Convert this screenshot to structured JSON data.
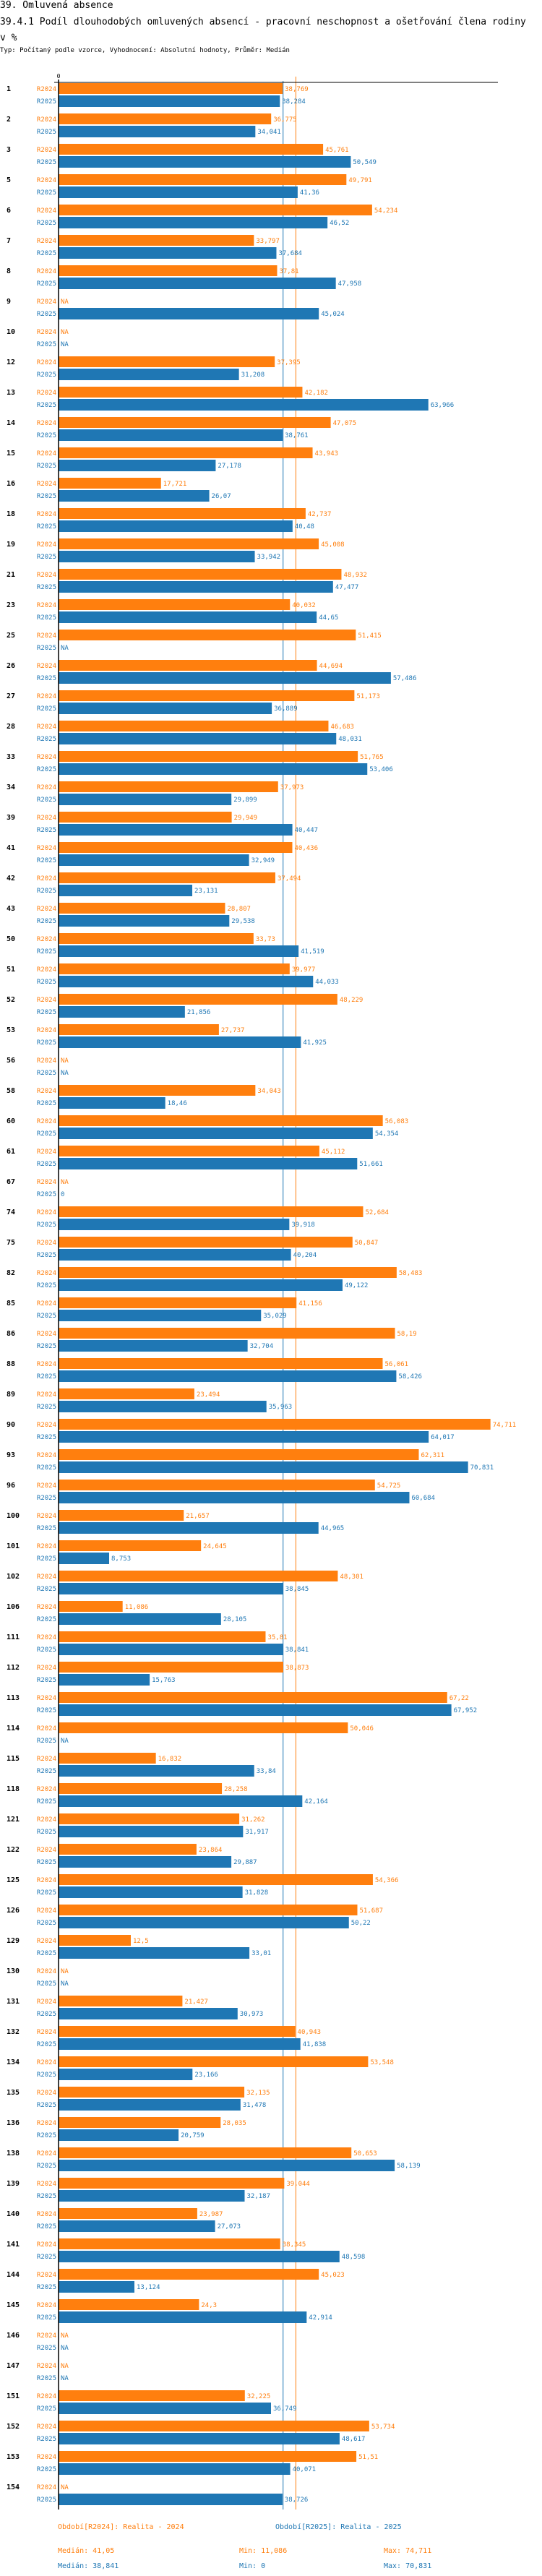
{
  "header": {
    "section_title": "39. Omluvená absence",
    "chart_title": "39.4.1 Podíl dlouhodobých omluvených absencí - pracovní neschopnost a ošetřování člena rodiny v %",
    "subtitle": "Typ: Počítaný podle vzorce, Vyhodnocení: Absolutní hodnoty, Průměr: Medián"
  },
  "colors": {
    "R2024": "#ff7f0e",
    "R2025": "#1f77b4",
    "axis": "#000000"
  },
  "legend": {
    "R2024": {
      "label": "Období[R2024]: Realita - 2024",
      "median": "Medián: 41,05",
      "min": "Min: 11,086",
      "max": "Max: 74,711"
    },
    "R2025": {
      "label": "Období[R2025]: Realita - 2025",
      "median": "Medián: 38,841",
      "min": "Min: 0",
      "max": "Max: 70,831"
    }
  },
  "chart_data": {
    "type": "bar",
    "orientation": "horizontal",
    "title": "39.4.1 Podíl dlouhodobých omluvených absencí - pracovní neschopnost a ošetřování člena rodiny v %",
    "xlabel": "",
    "ylabel": "",
    "xlim": [
      0,
      75
    ],
    "x_tick_labels": [
      "0"
    ],
    "grid": false,
    "series_names": [
      "R2024",
      "R2025"
    ],
    "medians": {
      "R2024": 41.05,
      "R2025": 38.841
    },
    "na_label": "NA",
    "decimal_separator": ",",
    "categories": [
      "1",
      "2",
      "3",
      "5",
      "6",
      "7",
      "8",
      "9",
      "10",
      "12",
      "13",
      "14",
      "15",
      "16",
      "18",
      "19",
      "21",
      "23",
      "25",
      "26",
      "27",
      "28",
      "33",
      "34",
      "39",
      "41",
      "42",
      "43",
      "50",
      "51",
      "52",
      "53",
      "56",
      "58",
      "60",
      "61",
      "67",
      "74",
      "75",
      "82",
      "85",
      "86",
      "88",
      "89",
      "90",
      "93",
      "96",
      "100",
      "101",
      "102",
      "106",
      "111",
      "112",
      "113",
      "114",
      "115",
      "118",
      "121",
      "122",
      "125",
      "126",
      "129",
      "130",
      "131",
      "132",
      "134",
      "135",
      "136",
      "138",
      "139",
      "140",
      "141",
      "144",
      "145",
      "146",
      "147",
      "151",
      "152",
      "153",
      "154"
    ],
    "series": [
      {
        "name": "R2024",
        "values": [
          38.769,
          36.775,
          45.761,
          49.791,
          54.234,
          33.797,
          37.81,
          null,
          null,
          37.395,
          42.182,
          47.075,
          43.943,
          17.721,
          42.737,
          45.008,
          48.932,
          40.032,
          51.415,
          44.694,
          51.173,
          46.683,
          51.765,
          37.973,
          29.949,
          40.436,
          37.494,
          28.807,
          33.73,
          39.977,
          48.229,
          27.737,
          null,
          34.043,
          56.083,
          45.112,
          null,
          52.684,
          50.847,
          58.483,
          41.156,
          58.19,
          56.061,
          23.494,
          74.711,
          62.311,
          54.725,
          21.657,
          24.645,
          48.301,
          11.086,
          35.81,
          38.873,
          67.22,
          50.046,
          16.832,
          28.258,
          31.262,
          23.864,
          54.366,
          51.687,
          12.5,
          null,
          21.427,
          40.943,
          53.548,
          32.135,
          28.035,
          50.653,
          39.044,
          23.987,
          38.345,
          45.023,
          24.3,
          null,
          null,
          32.225,
          53.734,
          51.51,
          null
        ]
      },
      {
        "name": "R2025",
        "values": [
          38.284,
          34.041,
          50.549,
          41.36,
          46.52,
          37.684,
          47.958,
          45.024,
          null,
          31.208,
          63.966,
          38.761,
          27.178,
          26.07,
          40.48,
          33.942,
          47.477,
          44.65,
          null,
          57.486,
          36.889,
          48.031,
          53.406,
          29.899,
          40.447,
          32.949,
          23.131,
          29.538,
          41.519,
          44.033,
          21.856,
          41.925,
          null,
          18.46,
          54.354,
          51.661,
          0,
          39.918,
          40.204,
          49.122,
          35.029,
          32.704,
          58.426,
          35.963,
          64.017,
          70.831,
          60.684,
          44.965,
          8.753,
          38.845,
          28.105,
          38.841,
          15.763,
          67.952,
          null,
          33.84,
          42.164,
          31.917,
          29.887,
          31.828,
          50.22,
          33.01,
          null,
          30.973,
          41.838,
          23.166,
          31.478,
          20.759,
          58.139,
          32.187,
          27.073,
          48.598,
          13.124,
          42.914,
          null,
          null,
          36.749,
          48.617,
          40.071,
          38.726
        ]
      }
    ]
  }
}
